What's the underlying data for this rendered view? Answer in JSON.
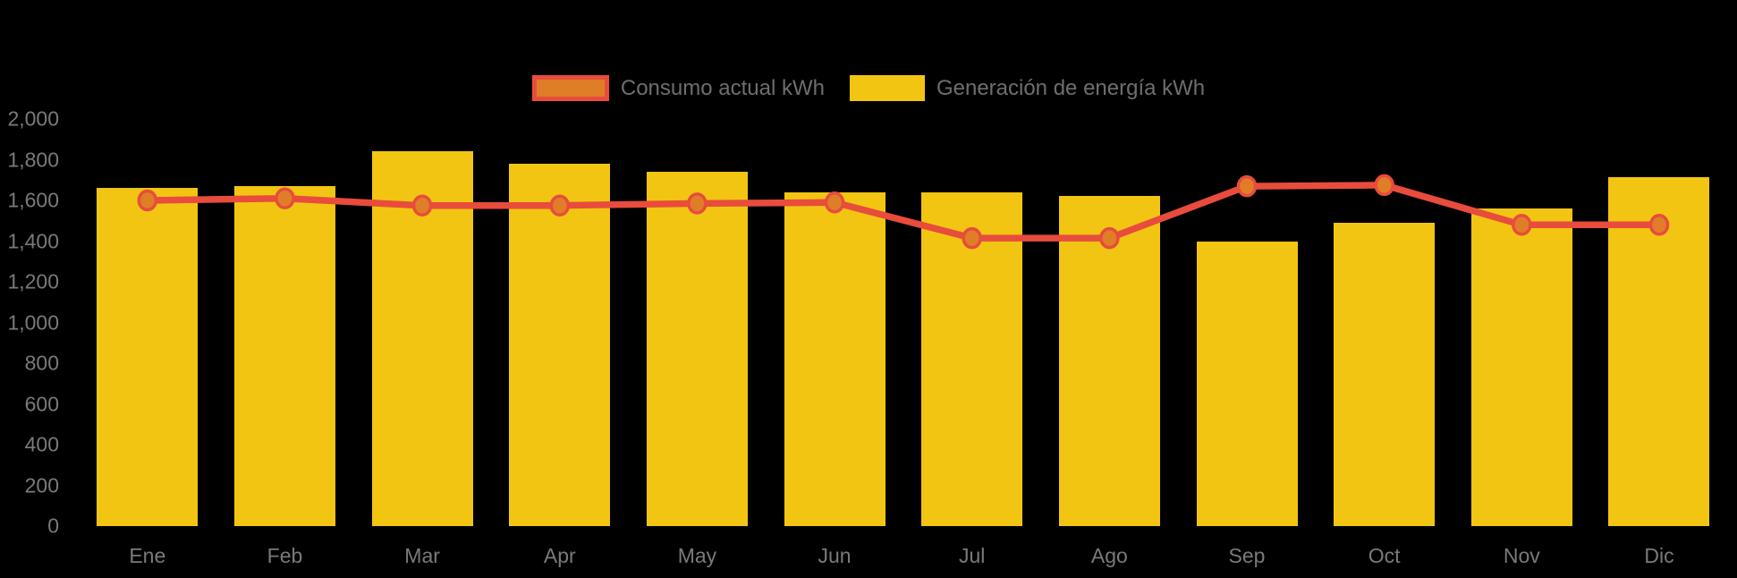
{
  "page": {
    "background": "#000000"
  },
  "legend": {
    "items": [
      {
        "label": "Consumo actual kWh",
        "swatch_fill": "#E07E28",
        "swatch_border": "#E84C3C"
      },
      {
        "label": "Generación de energía kWh",
        "swatch_fill": "#F2C512",
        "swatch_border": null
      }
    ]
  },
  "chart_data": {
    "type": "bar",
    "title": "",
    "xlabel": "",
    "ylabel": "",
    "categories": [
      "Ene",
      "Feb",
      "Mar",
      "Apr",
      "May",
      "Jun",
      "Jul",
      "Ago",
      "Sep",
      "Oct",
      "Nov",
      "Dic"
    ],
    "series": [
      {
        "name": "Consumo actual kWh",
        "type": "line",
        "color": "#E84C3C",
        "point_fill": "#E07E28",
        "point_stroke": "#E84C3C",
        "values": [
          1600,
          1610,
          1575,
          1575,
          1585,
          1590,
          1415,
          1415,
          1670,
          1675,
          1480,
          1480
        ]
      },
      {
        "name": "Generación de energía kWh",
        "type": "bar",
        "color": "#F2C512",
        "values": [
          1660,
          1670,
          1840,
          1780,
          1740,
          1640,
          1640,
          1620,
          1400,
          1490,
          1560,
          1715
        ]
      }
    ],
    "ylim": [
      0,
      2000
    ],
    "yticks": [
      0,
      200,
      400,
      600,
      800,
      1000,
      1200,
      1400,
      1600,
      1800,
      2000
    ],
    "ytick_format": "thousands-comma",
    "grid": false,
    "legend_position": "top-center",
    "background": "#000000",
    "text_color": "#7A7A7A"
  }
}
